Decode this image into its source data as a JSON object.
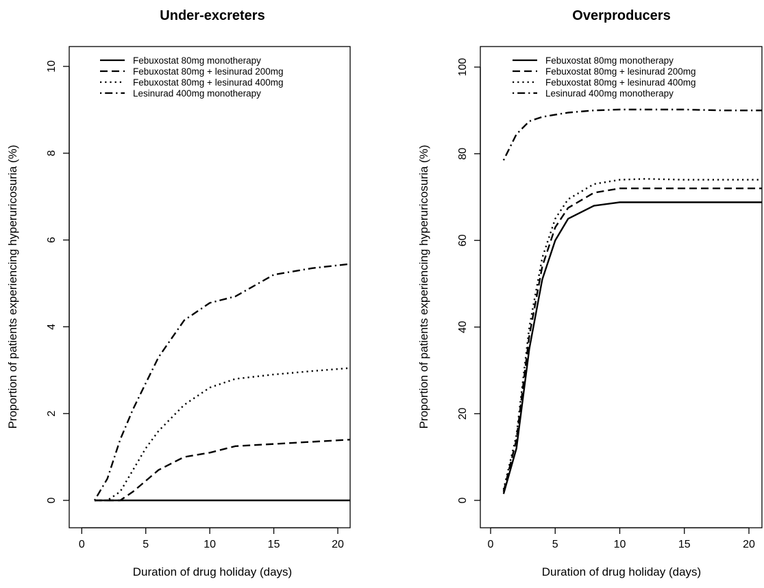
{
  "legend": [
    {
      "label": "Febuxostat 80mg monotherapy",
      "style": "solid"
    },
    {
      "label": "Febuxostat 80mg + lesinurad 200mg",
      "style": "dashed"
    },
    {
      "label": "Febuxostat 80mg + lesinurad 400mg",
      "style": "dotted"
    },
    {
      "label": "Lesinurad 400mg monotherapy",
      "style": "dotdash"
    }
  ],
  "chart_data": [
    {
      "type": "line",
      "title": "Under-excreters",
      "xlabel": "Duration of drug holiday (days)",
      "ylabel": "Proportion of patients experiencing hyperuricosuria (%)",
      "xlim": [
        0,
        21
      ],
      "ylim": [
        0,
        10
      ],
      "xticks": [
        0,
        5,
        10,
        15,
        20
      ],
      "yticks": [
        0,
        2,
        4,
        6,
        8,
        10
      ],
      "grid": false,
      "legend_position": "top",
      "series": [
        {
          "name": "Febuxostat 80mg monotherapy",
          "style": "solid",
          "points": [
            [
              1,
              0
            ],
            [
              2,
              0
            ],
            [
              3,
              0
            ],
            [
              4,
              0
            ],
            [
              5,
              0
            ],
            [
              6,
              0
            ],
            [
              8,
              0
            ],
            [
              10,
              0
            ],
            [
              12,
              0
            ],
            [
              15,
              0
            ],
            [
              18,
              0
            ],
            [
              21,
              0
            ]
          ]
        },
        {
          "name": "Febuxostat 80mg + lesinurad 200mg",
          "style": "dashed",
          "points": [
            [
              1,
              0
            ],
            [
              2,
              0
            ],
            [
              3,
              0
            ],
            [
              4,
              0.2
            ],
            [
              5,
              0.45
            ],
            [
              6,
              0.7
            ],
            [
              8,
              1.0
            ],
            [
              10,
              1.1
            ],
            [
              12,
              1.25
            ],
            [
              15,
              1.3
            ],
            [
              18,
              1.35
            ],
            [
              21,
              1.4
            ]
          ]
        },
        {
          "name": "Febuxostat 80mg + lesinurad 400mg",
          "style": "dotted",
          "points": [
            [
              1,
              0
            ],
            [
              2,
              0
            ],
            [
              3,
              0.2
            ],
            [
              4,
              0.7
            ],
            [
              5,
              1.2
            ],
            [
              6,
              1.6
            ],
            [
              8,
              2.2
            ],
            [
              10,
              2.6
            ],
            [
              12,
              2.8
            ],
            [
              15,
              2.9
            ],
            [
              18,
              2.98
            ],
            [
              21,
              3.05
            ]
          ]
        },
        {
          "name": "Lesinurad 400mg monotherapy",
          "style": "dotdash",
          "points": [
            [
              1,
              0
            ],
            [
              2,
              0.5
            ],
            [
              3,
              1.4
            ],
            [
              4,
              2.1
            ],
            [
              5,
              2.7
            ],
            [
              6,
              3.3
            ],
            [
              8,
              4.15
            ],
            [
              10,
              4.55
            ],
            [
              12,
              4.7
            ],
            [
              15,
              5.2
            ],
            [
              18,
              5.35
            ],
            [
              21,
              5.45
            ]
          ]
        }
      ]
    },
    {
      "type": "line",
      "title": "Overproducers",
      "xlabel": "Duration of drug holiday (days)",
      "ylabel": "Proportion of patients experiencing hyperuricosuria (%)",
      "xlim": [
        0,
        21
      ],
      "ylim": [
        0,
        100
      ],
      "xticks": [
        0,
        5,
        10,
        15,
        20
      ],
      "yticks": [
        0,
        20,
        40,
        60,
        80,
        100
      ],
      "grid": false,
      "legend_position": "top",
      "series": [
        {
          "name": "Febuxostat 80mg monotherapy",
          "style": "solid",
          "points": [
            [
              1,
              1.5
            ],
            [
              2,
              12
            ],
            [
              3,
              35
            ],
            [
              4,
              51
            ],
            [
              5,
              60
            ],
            [
              6,
              65
            ],
            [
              8,
              68
            ],
            [
              10,
              68.8
            ],
            [
              12,
              68.8
            ],
            [
              15,
              68.8
            ],
            [
              18,
              68.8
            ],
            [
              21,
              68.8
            ]
          ]
        },
        {
          "name": "Febuxostat 80mg + lesinurad 200mg",
          "style": "dashed",
          "points": [
            [
              1,
              2
            ],
            [
              2,
              14
            ],
            [
              3,
              38
            ],
            [
              4,
              54
            ],
            [
              5,
              63
            ],
            [
              6,
              67.5
            ],
            [
              8,
              71
            ],
            [
              10,
              72
            ],
            [
              12,
              72
            ],
            [
              15,
              72
            ],
            [
              18,
              72
            ],
            [
              21,
              72
            ]
          ]
        },
        {
          "name": "Febuxostat 80mg + lesinurad 400mg",
          "style": "dotted",
          "points": [
            [
              1,
              2.5
            ],
            [
              2,
              15
            ],
            [
              3,
              40
            ],
            [
              4,
              56
            ],
            [
              5,
              65
            ],
            [
              6,
              69.5
            ],
            [
              8,
              73
            ],
            [
              10,
              74
            ],
            [
              12,
              74.2
            ],
            [
              15,
              74
            ],
            [
              18,
              74
            ],
            [
              21,
              74
            ]
          ]
        },
        {
          "name": "Lesinurad 400mg monotherapy",
          "style": "dotdash",
          "points": [
            [
              1,
              78.5
            ],
            [
              2,
              84.5
            ],
            [
              3,
              87.5
            ],
            [
              4,
              88.5
            ],
            [
              5,
              89
            ],
            [
              6,
              89.5
            ],
            [
              8,
              90
            ],
            [
              10,
              90.2
            ],
            [
              12,
              90.2
            ],
            [
              15,
              90.2
            ],
            [
              18,
              90
            ],
            [
              21,
              90
            ]
          ]
        }
      ]
    }
  ]
}
